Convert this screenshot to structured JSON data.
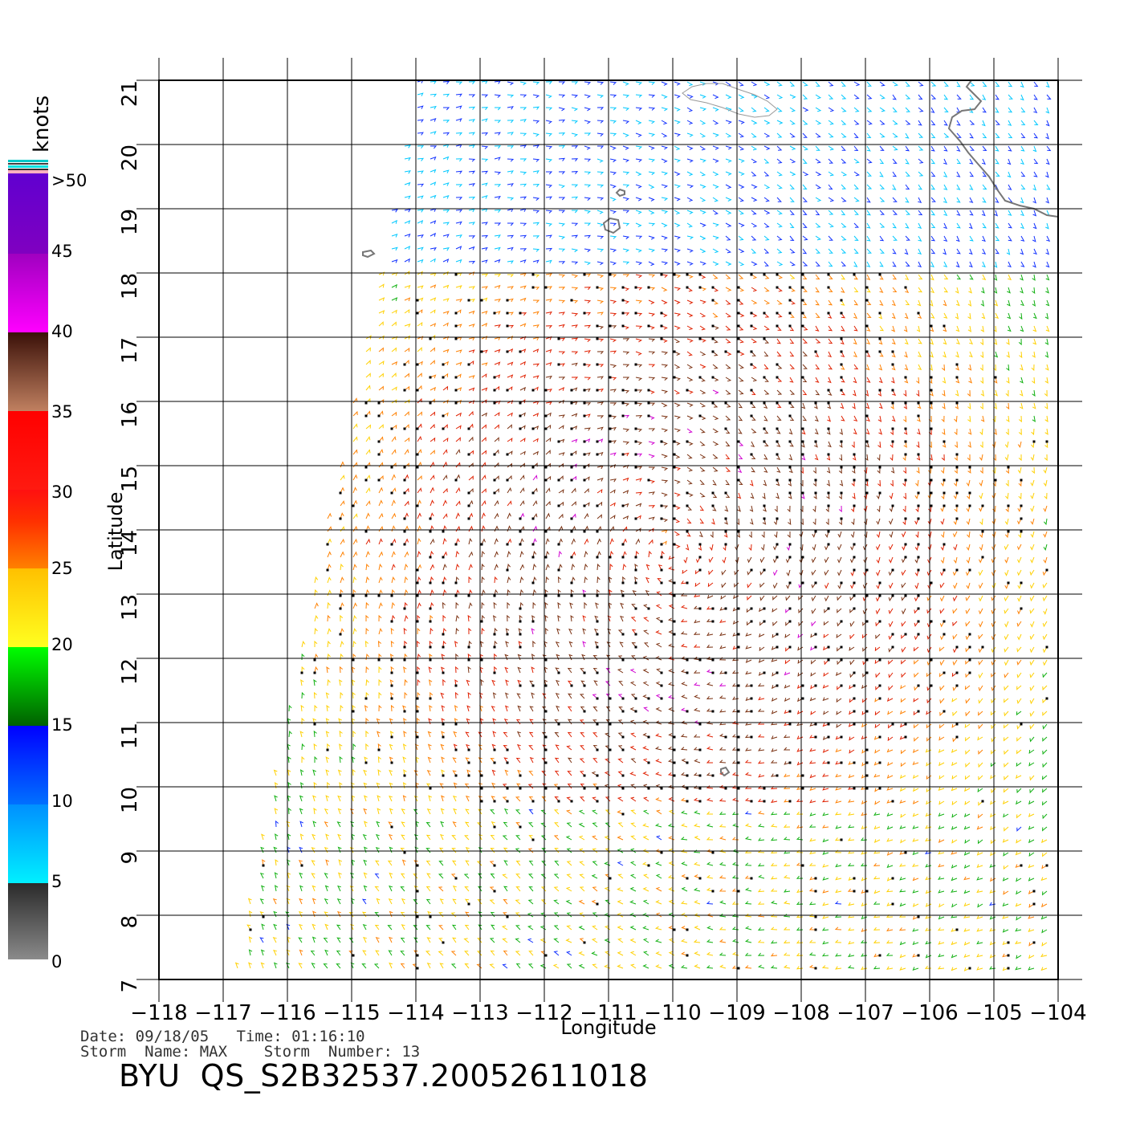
{
  "colorbar": {
    "unit": "knots",
    "tick_labels": [
      "0",
      "5",
      "10",
      "15",
      "20",
      "25",
      "30",
      "35",
      "40",
      "45",
      ">50"
    ]
  },
  "axes": {
    "xlabel": "Longitude",
    "ylabel": "Latitude",
    "xtick_labels": [
      "−118",
      "−117",
      "−116",
      "−115",
      "−114",
      "−113",
      "−112",
      "−111",
      "−110",
      "−109",
      "−108",
      "−107",
      "−106",
      "−105",
      "−104"
    ],
    "ytick_labels": [
      "7",
      "8",
      "9",
      "10",
      "11",
      "12",
      "13",
      "14",
      "15",
      "16",
      "17",
      "18",
      "19",
      "20",
      "21"
    ],
    "lon_range": [
      -118,
      -104
    ],
    "lat_range": [
      7,
      21
    ]
  },
  "info": {
    "date_time": "Date: 09/18/05   Time: 01:16:10",
    "storm": "Storm  Name: MAX    Storm  Number: 13",
    "file_id": "BYU  QS_S2B32537.20052611018"
  },
  "colors": {
    "bands": [
      "#7f7f7f",
      "#00e8ff",
      "#0000ff",
      "#00ff00",
      "#ffd800",
      "#ff2000",
      "#5a2a10",
      "#ff00ff",
      "#6a00ff"
    ]
  },
  "storm_center": {
    "lon": -110.0,
    "lat": 13.6
  }
}
